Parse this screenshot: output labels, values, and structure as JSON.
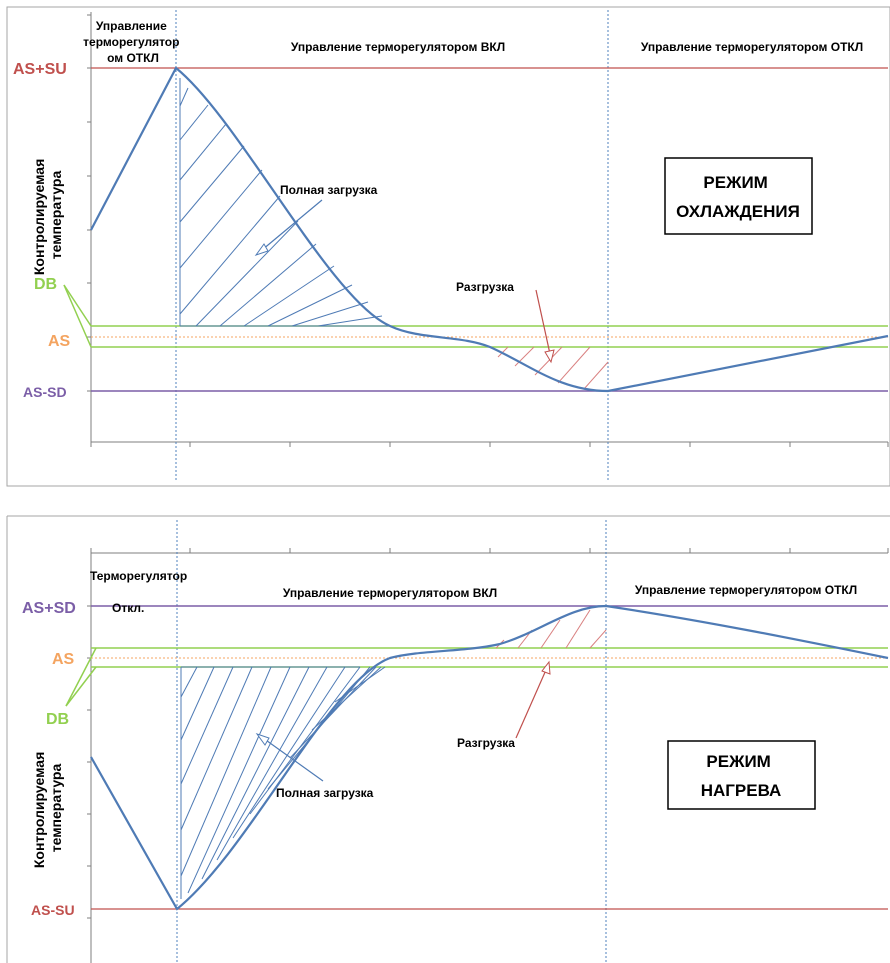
{
  "colors": {
    "curve": "#4f7bb5",
    "red_line": "#c0504d",
    "purple_line": "#7b5ea7",
    "green_line": "#92d050",
    "orange_dotted": "#f4a460",
    "blue_dotted": "#4f81bd",
    "hatch_blue": "#4f7bb5",
    "hatch_red": "#d98080",
    "frame": "#a6a6a6"
  },
  "cooling": {
    "header_off_left": [
      "Управление",
      "терморегулятор",
      "ом ОТКЛ"
    ],
    "header_on": "Управление терморегулятором ВКЛ",
    "header_off_right": "Управление терморегулятором ОТКЛ",
    "label_upper": "AS+SU",
    "label_db": "DB",
    "label_as": "AS",
    "label_lower": "AS-SD",
    "y_axis_label": [
      "Контролируемая",
      "температура"
    ],
    "full_load": "Полная загрузка",
    "unload": "Разгрузка",
    "mode_box": [
      "РЕЖИМ",
      "ОХЛАЖДЕНИЯ"
    ]
  },
  "heating": {
    "header_off_left": [
      "Терморегулятор",
      "Откл."
    ],
    "header_on": "Управление терморегулятором ВКЛ",
    "header_off_right": "Управление терморегулятором ОТКЛ",
    "label_upper": "AS+SD",
    "label_as": "AS",
    "label_db": "DB",
    "label_lower": "AS-SU",
    "y_axis_label": [
      "Контролируемая",
      "температура"
    ],
    "unload": "Разгрузка",
    "full_load": "Полная загрузка",
    "mode_box": [
      "РЕЖИМ",
      "НАГРЕВА"
    ]
  }
}
